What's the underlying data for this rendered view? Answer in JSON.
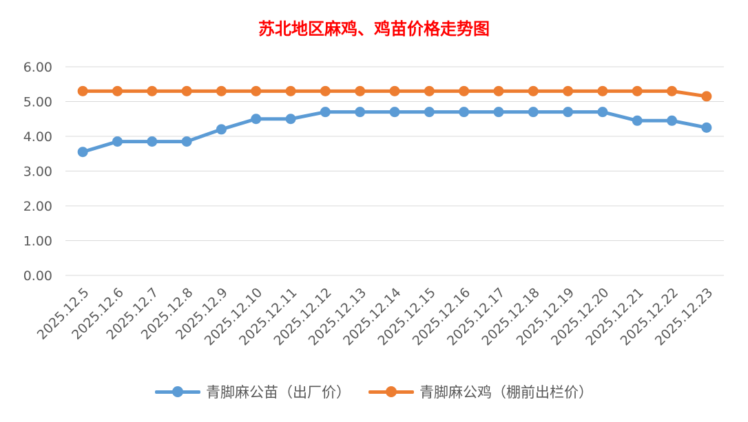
{
  "chart_data": {
    "type": "line",
    "title": "苏北地区麻鸡、鸡苗价格走势图",
    "xlabel": "",
    "ylabel": "",
    "categories": [
      "2025.12.5",
      "2025.12.6",
      "2025.12.7",
      "2025.12.8",
      "2025.12.9",
      "2025.12.10",
      "2025.12.11",
      "2025.12.12",
      "2025.12.13",
      "2025.12.14",
      "2025.12.15",
      "2025.12.16",
      "2025.12.17",
      "2025.12.18",
      "2025.12.19",
      "2025.12.20",
      "2025.12.21",
      "2025.12.22",
      "2025.12.23"
    ],
    "ylim": [
      0,
      6
    ],
    "yticks": [
      "0.00",
      "1.00",
      "2.00",
      "3.00",
      "4.00",
      "5.00",
      "6.00"
    ],
    "grid": true,
    "legend_position": "bottom",
    "series": [
      {
        "name": "青脚麻公苗（出厂价）",
        "color": "#5b9bd5",
        "values": [
          3.55,
          3.85,
          3.85,
          3.85,
          4.2,
          4.5,
          4.5,
          4.7,
          4.7,
          4.7,
          4.7,
          4.7,
          4.7,
          4.7,
          4.7,
          4.7,
          4.45,
          4.45,
          4.25
        ]
      },
      {
        "name": "青脚麻公鸡（棚前出栏价）",
        "color": "#ed7d31",
        "values": [
          5.3,
          5.3,
          5.3,
          5.3,
          5.3,
          5.3,
          5.3,
          5.3,
          5.3,
          5.3,
          5.3,
          5.3,
          5.3,
          5.3,
          5.3,
          5.3,
          5.3,
          5.3,
          5.15
        ]
      }
    ]
  },
  "style": {
    "title_color": "#ff0000",
    "axis_text_color": "#595959",
    "grid_color": "#d9d9d9"
  }
}
